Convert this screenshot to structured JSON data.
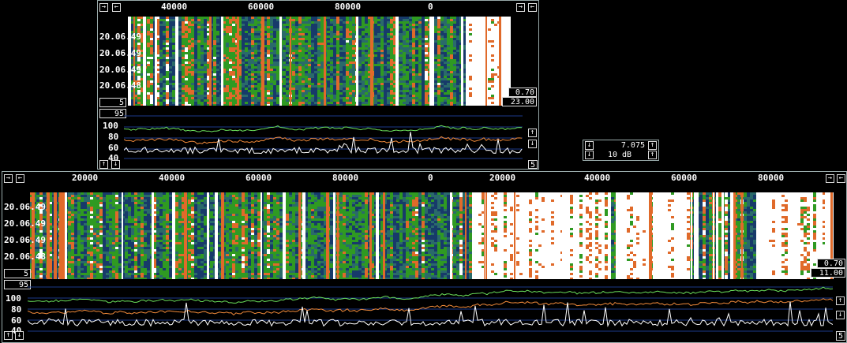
{
  "colors": {
    "green": "#2f9a22",
    "orange": "#e06a2a",
    "blue": "#1c3a8a",
    "white": "#ffffff",
    "bg": "#000000"
  },
  "icons": {
    "left": "arrow-left-icon",
    "right": "arrow-right-icon",
    "up": "arrow-up-icon",
    "down": "arrow-down-icon"
  },
  "top": {
    "freq_ticks": [
      "40000",
      "60000",
      "80000",
      "0"
    ],
    "time_labels": [
      "20.06.49",
      "20.06.49",
      "20.06.49",
      "20.06.48"
    ],
    "gain_top": "0.70",
    "gain_bottom": "23.00",
    "left_box": "5",
    "spec_left_box": "95",
    "spec_right_box": "5",
    "y_labels": [
      "100",
      "80",
      "60",
      "40"
    ]
  },
  "bottom": {
    "freq_ticks": [
      "20000",
      "40000",
      "60000",
      "80000",
      "0",
      "20000",
      "40000",
      "60000",
      "80000"
    ],
    "time_labels": [
      "20.06.49",
      "20.06.49",
      "20.06.49",
      "20.06.48"
    ],
    "gain_top": "0.70",
    "gain_bottom": "11.00",
    "left_box": "5",
    "spec_left_box": "95",
    "spec_right_box": "5",
    "y_labels": [
      "100",
      "80",
      "60",
      "40"
    ]
  },
  "control": {
    "frequency": "7.075",
    "level": "10 dB"
  }
}
